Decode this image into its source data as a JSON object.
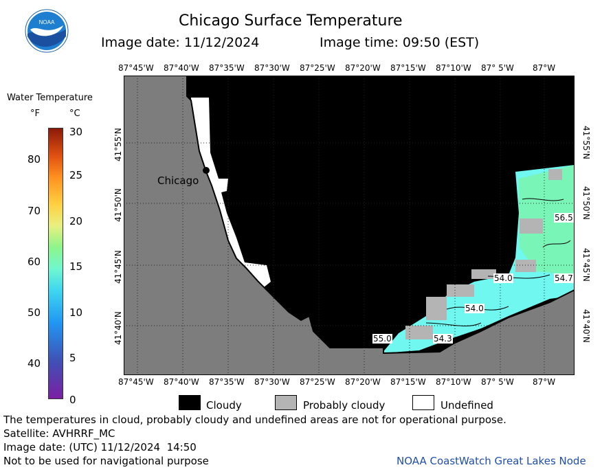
{
  "header": {
    "title": "Chicago Surface Temperature",
    "image_date": "Image date: 11/12/2024",
    "image_time": "Image time: 09:50 (EST)",
    "logo_text": "NOAA"
  },
  "map": {
    "lon_labels": [
      "87°45'W",
      "87°40'W",
      "87°35'W",
      "87°30'W",
      "87°25'W",
      "87°20'W",
      "87°15'W",
      "87°10'W",
      "87° 5'W",
      "87°W"
    ],
    "lat_labels": [
      "41°55'N",
      "41°50'N",
      "41°45'N",
      "41°40'N"
    ],
    "city_label": "Chicago",
    "temp_labels": [
      "56.5",
      "54.0",
      "54.7",
      "54.0",
      "55.0",
      "54.3"
    ],
    "colors": {
      "land": "#7d7d7d",
      "cloud": "#000000",
      "probably_cloudy": "#b4b4b4",
      "undefined": "#ffffff",
      "water_cyan": "#6ff7f0",
      "water_green": "#7af5b8"
    }
  },
  "colorbar": {
    "title": "Water Temperature",
    "unit_f": "°F",
    "unit_c": "°C",
    "f_ticks": [
      "80",
      "70",
      "60",
      "50",
      "40"
    ],
    "c_ticks": [
      "30",
      "25",
      "20",
      "15",
      "10",
      "5",
      "0"
    ]
  },
  "legend": {
    "items": [
      {
        "label": "Cloudy",
        "color": "#000000"
      },
      {
        "label": "Probably cloudy",
        "color": "#b4b4b4"
      },
      {
        "label": "Undefined",
        "color": "#ffffff"
      }
    ]
  },
  "footer": {
    "disclaimer": "The temperatures in cloud, probably cloudy and undefined areas are not for operational purpose.",
    "satellite": "Satellite: AVHRRF_MC",
    "utc_date": "Image date: (UTC) 11/12/2024  14:50",
    "nav_warning": "Not to be used for navigational purpose",
    "credit": "NOAA CoastWatch Great Lakes Node"
  }
}
